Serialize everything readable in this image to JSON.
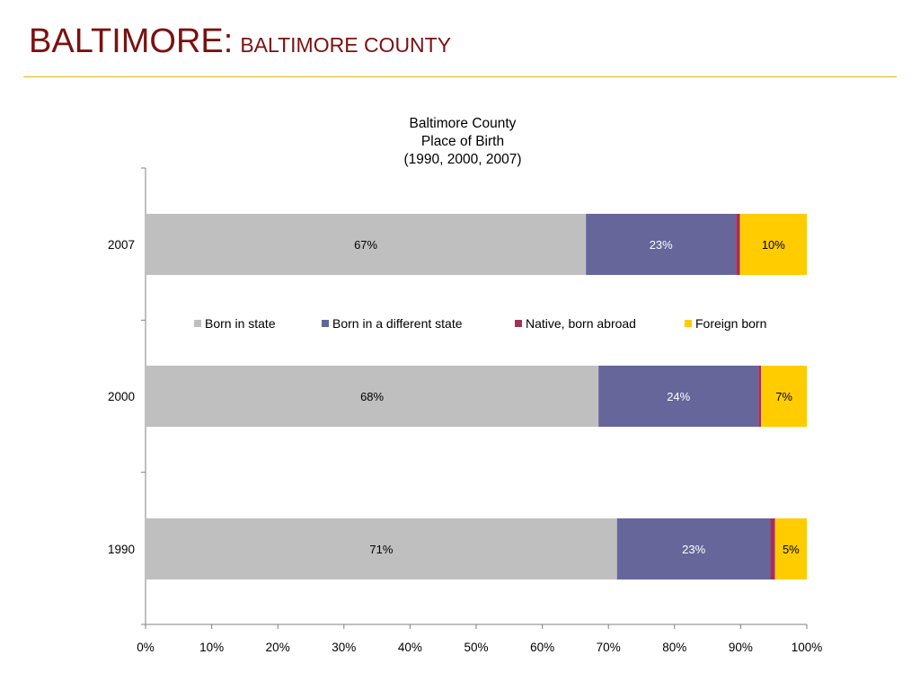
{
  "slide": {
    "title_main": "BALTIMORE:",
    "title_sub": "BALTIMORE COUNTY"
  },
  "colors": {
    "title": "#7b1010",
    "rule": "#e7b81f"
  },
  "chart_data": {
    "type": "bar",
    "orientation": "horizontal",
    "stacked": true,
    "title_lines": [
      "Baltimore County",
      "Place of Birth",
      "(1990, 2000, 2007)"
    ],
    "categories": [
      "2007",
      "2000",
      "1990"
    ],
    "xlim": [
      0,
      100
    ],
    "xticks": [
      "0%",
      "10%",
      "20%",
      "30%",
      "40%",
      "50%",
      "60%",
      "70%",
      "80%",
      "90%",
      "100%"
    ],
    "grid": false,
    "legend_position": "middle",
    "series": [
      {
        "name": "Born in state",
        "color": "#bfbfbf",
        "label_color": "#000000",
        "values": [
          66.6,
          68.5,
          71.3
        ],
        "labels": [
          "67%",
          "68%",
          "71%"
        ]
      },
      {
        "name": "Born in a different state",
        "color": "#66669b",
        "label_color": "#ffffff",
        "values": [
          22.7,
          24.2,
          23.2
        ],
        "labels": [
          "23%",
          "24%",
          "23%"
        ]
      },
      {
        "name": "Native, born abroad",
        "color": "#a3305a",
        "label_color": "#000000",
        "values": [
          0.6,
          0.4,
          0.7
        ],
        "labels": [
          "",
          "",
          ""
        ]
      },
      {
        "name": "Foreign born",
        "color": "#ffcc00",
        "label_color": "#000000",
        "values": [
          10.1,
          6.9,
          4.8
        ],
        "labels": [
          "10%",
          "7%",
          "5%"
        ]
      }
    ]
  }
}
